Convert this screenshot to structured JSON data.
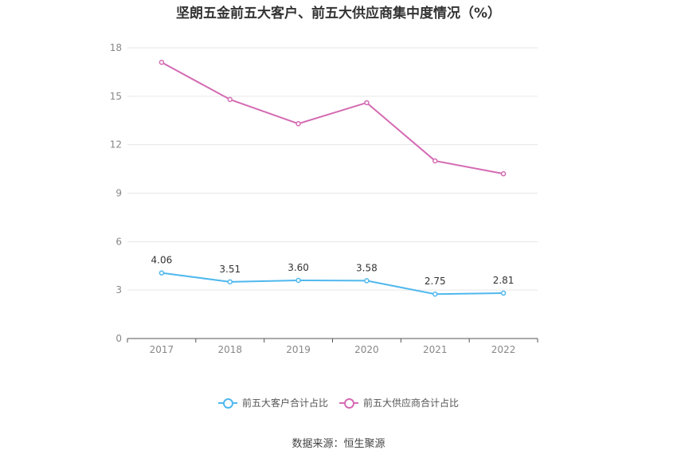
{
  "title": "坚朗五金前五大客户、前五大供应商集中度情况（%）",
  "source": "数据来源：恒生聚源",
  "chart_data": {
    "type": "line",
    "title": "坚朗五金前五大客户、前五大供应商集中度情况（%）",
    "categories": [
      "2017",
      "2018",
      "2019",
      "2020",
      "2021",
      "2022"
    ],
    "ylim": [
      0,
      18
    ],
    "yticks": [
      0,
      3,
      6,
      9,
      12,
      15,
      18
    ],
    "grid": true,
    "legend_position": "bottom",
    "series": [
      {
        "name": "前五大客户合计占比",
        "color": "#4fb8ee",
        "values": [
          4.06,
          3.51,
          3.6,
          3.58,
          2.75,
          2.81
        ],
        "labels": [
          "4.06",
          "3.51",
          "3.60",
          "3.58",
          "2.75",
          "2.81"
        ],
        "show_labels": true
      },
      {
        "name": "前五大供应商合计占比",
        "color": "#d46bb3",
        "values": [
          17.1,
          14.8,
          13.3,
          14.6,
          11.0,
          10.2
        ],
        "show_labels": false
      }
    ]
  }
}
